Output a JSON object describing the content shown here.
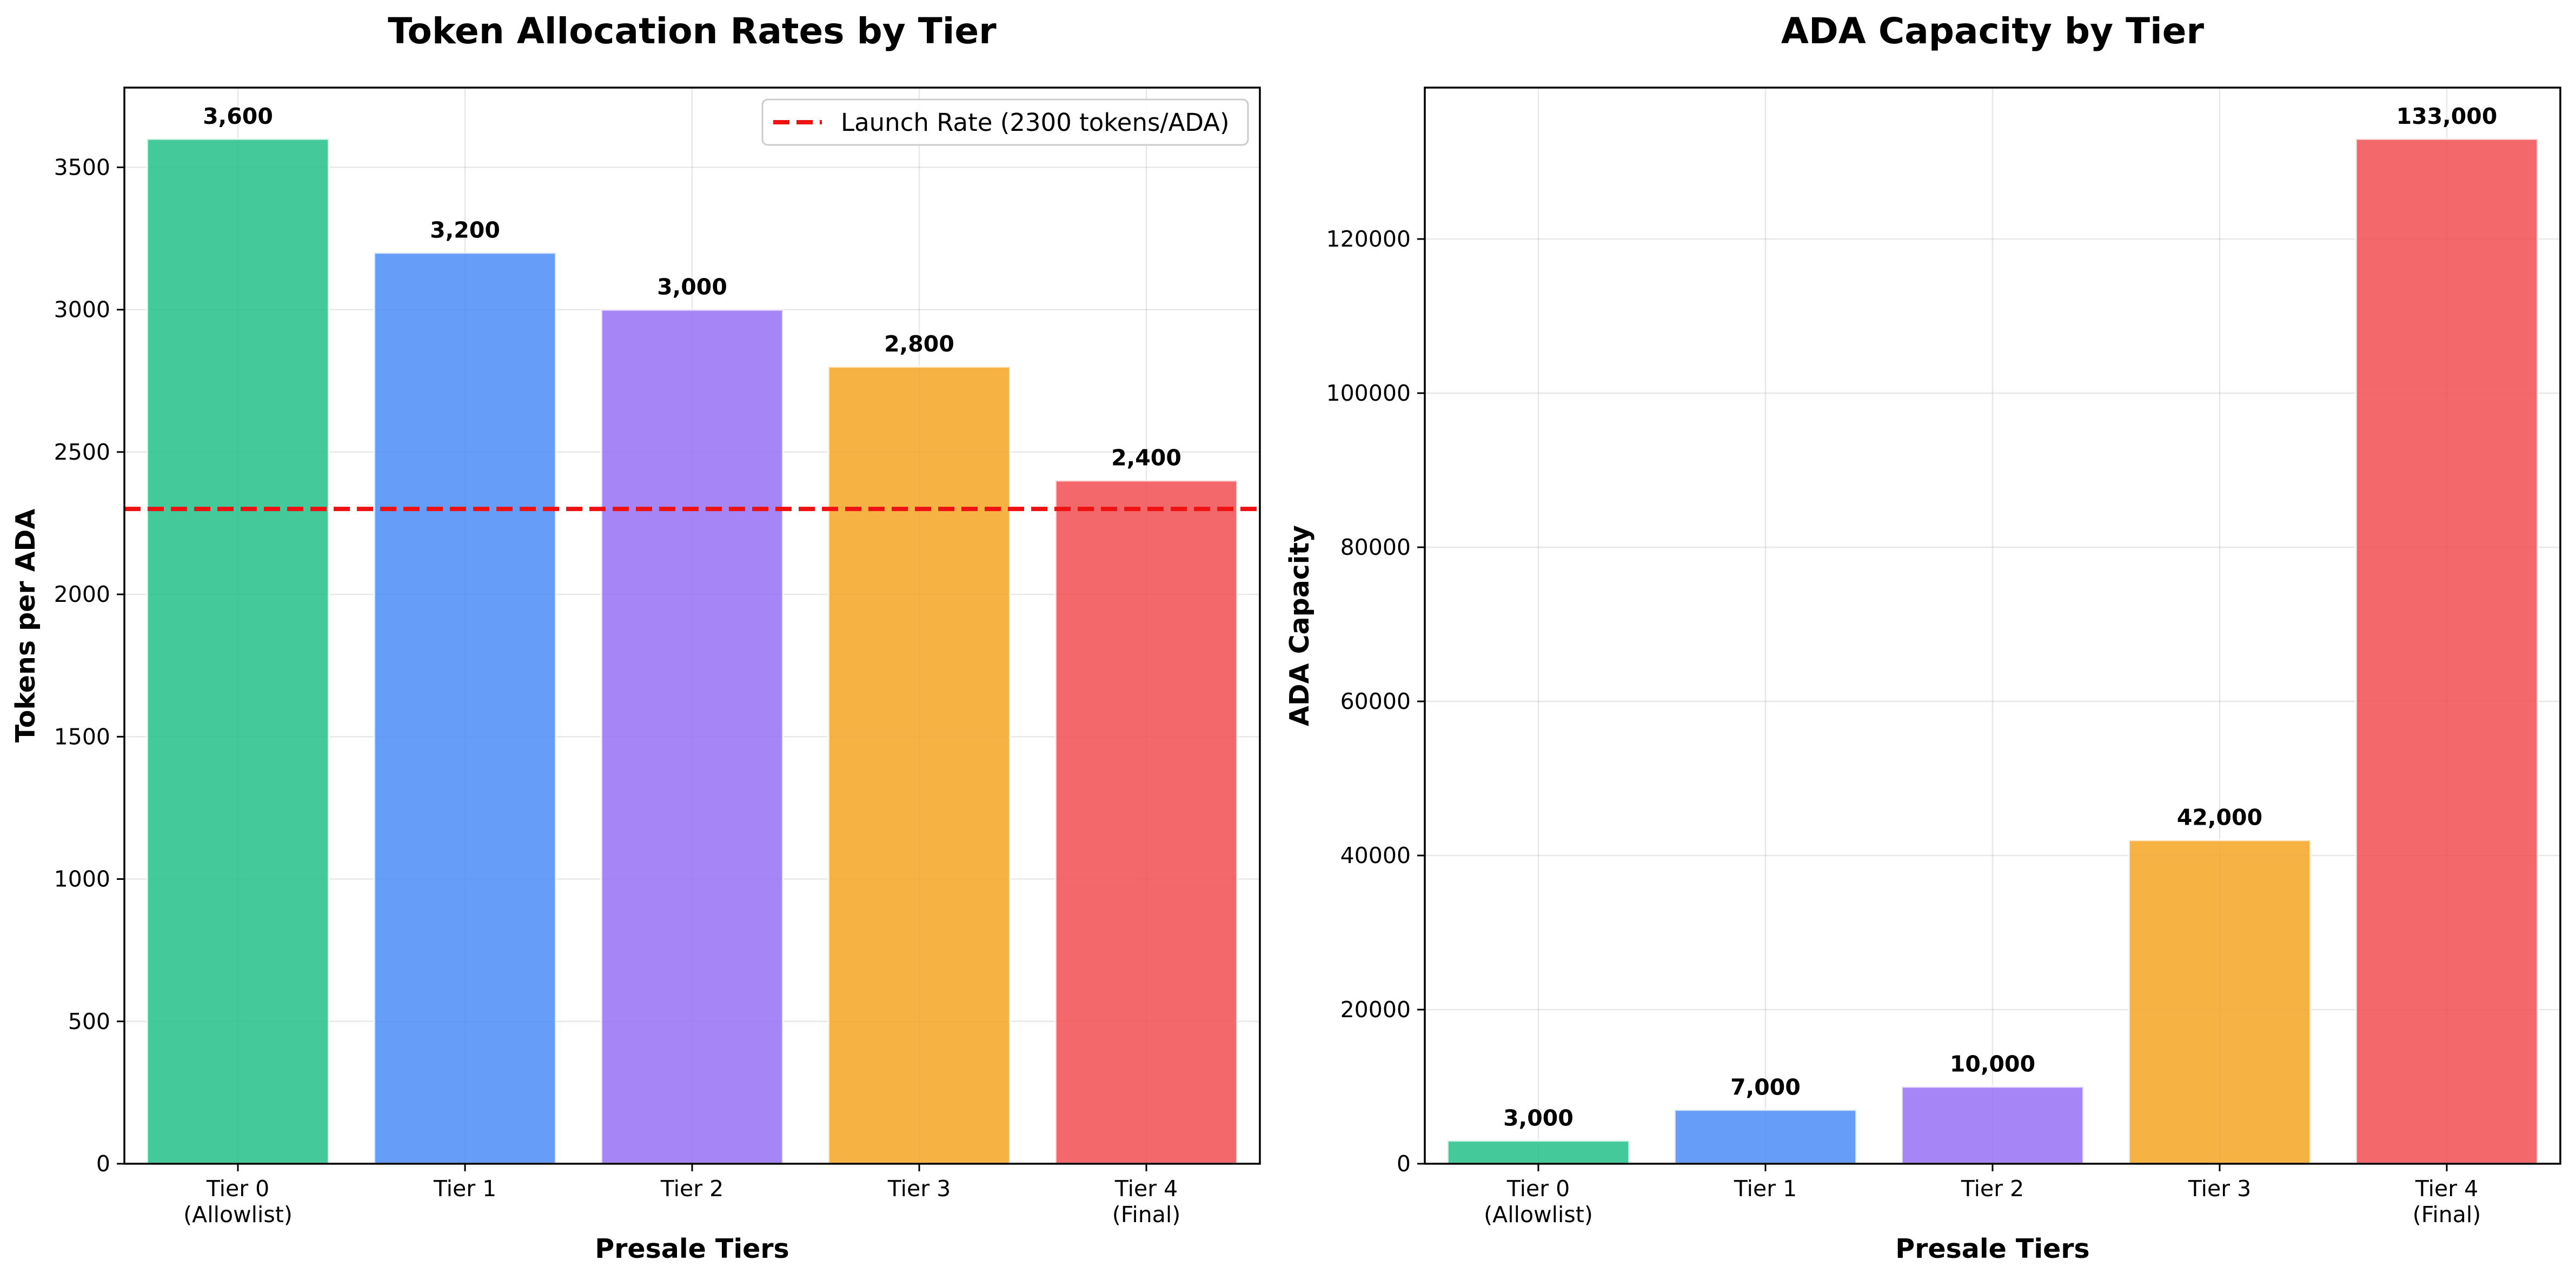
{
  "colors": {
    "tier0": "#22c088",
    "tier1": "#4a8cf7",
    "tier2": "#9670f5",
    "tier3": "#f5a623",
    "tier4": "#f04e51",
    "reference_line": "#ee1111"
  },
  "chart_data": [
    {
      "type": "bar",
      "title": "Token Allocation Rates by Tier",
      "xlabel": "Presale Tiers",
      "ylabel": "Tokens per ADA",
      "categories": [
        [
          "Tier 0",
          "(Allowlist)"
        ],
        [
          "Tier 1"
        ],
        [
          "Tier 2"
        ],
        [
          "Tier 3"
        ],
        [
          "Tier 4",
          "(Final)"
        ]
      ],
      "values": [
        3600,
        3200,
        3000,
        2800,
        2400
      ],
      "data_labels": [
        "3,600",
        "3,200",
        "3,000",
        "2,800",
        "2,400"
      ],
      "ylim": [
        0,
        3780
      ],
      "yticks": [
        0,
        500,
        1000,
        1500,
        2000,
        2500,
        3000,
        3500
      ],
      "grid": true,
      "reference_line": {
        "y": 2300,
        "style": "dashed",
        "label": "Launch Rate (2300 tokens/ADA)"
      },
      "legend": {
        "placement": "top-right",
        "entries": [
          "Launch Rate (2300 tokens/ADA)"
        ]
      }
    },
    {
      "type": "bar",
      "title": "ADA Capacity by Tier",
      "xlabel": "Presale Tiers",
      "ylabel": "ADA Capacity",
      "categories": [
        [
          "Tier 0",
          "(Allowlist)"
        ],
        [
          "Tier 1"
        ],
        [
          "Tier 2"
        ],
        [
          "Tier 3"
        ],
        [
          "Tier 4",
          "(Final)"
        ]
      ],
      "values": [
        3000,
        7000,
        10000,
        42000,
        133000
      ],
      "data_labels": [
        "3,000",
        "7,000",
        "10,000",
        "42,000",
        "133,000"
      ],
      "ylim": [
        0,
        139650
      ],
      "yticks": [
        0,
        20000,
        40000,
        60000,
        80000,
        100000,
        120000
      ],
      "grid": true
    }
  ]
}
